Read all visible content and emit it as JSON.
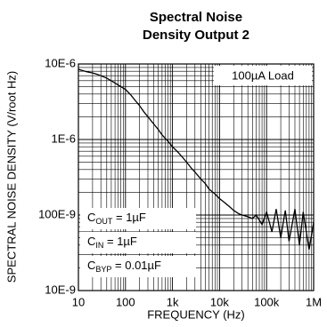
{
  "chart_data": {
    "type": "line",
    "title": [
      "Spectral Noise",
      "Density Output 2"
    ],
    "xlabel": "FREQUENCY (Hz)",
    "ylabel": "SPECTRAL NOISE DENSITY (V/root Hz)",
    "log_x": true,
    "log_y": true,
    "grid": true,
    "minor_grid": true,
    "color": "#000000",
    "xlim": [
      10,
      1000000
    ],
    "ylim": [
      1e-08,
      1e-05
    ],
    "xticks": [
      10,
      100,
      {
        "value": 1000,
        "label": "1k"
      },
      {
        "value": 10000,
        "label": "10k"
      },
      {
        "value": 100000,
        "label": "100k"
      },
      {
        "value": 1000000,
        "label": "1M"
      }
    ],
    "yticks": [
      {
        "value": 1e-08,
        "label": "10E-9"
      },
      {
        "value": 1e-07,
        "label": "100E-9"
      },
      {
        "value": 1e-06,
        "label": "1E-6"
      },
      {
        "value": 1e-05,
        "label": "10E-6"
      }
    ],
    "x": [
      10,
      12,
      15,
      20,
      25,
      30,
      40,
      50,
      60,
      80,
      100,
      130,
      160,
      200,
      250,
      300,
      400,
      500,
      600,
      800,
      1000,
      1300,
      1600,
      2000,
      2500,
      3000,
      4000,
      5000,
      6000,
      8000,
      10000,
      13000,
      16000,
      20000,
      25000,
      30000,
      40000,
      50000,
      60000,
      80000,
      100000,
      130000,
      160000,
      200000,
      250000,
      300000,
      400000,
      500000,
      600000,
      800000,
      1000000
    ],
    "values": [
      8.5e-06,
      8.2e-06,
      7.9e-06,
      7.6e-06,
      7.3e-06,
      7e-06,
      6.5e-06,
      6e-06,
      5.6e-06,
      5e-06,
      4.6e-06,
      3.9e-06,
      3.3e-06,
      2.8e-06,
      2.3e-06,
      2e-06,
      1.6e-06,
      1.35e-06,
      1.15e-06,
      9.5e-07,
      8e-07,
      6.8e-07,
      5.9e-07,
      5e-07,
      4.2e-07,
      3.7e-07,
      3e-07,
      2.6e-07,
      2.2e-07,
      1.9e-07,
      1.65e-07,
      1.45e-07,
      1.3e-07,
      1.15e-07,
      1.05e-07,
      1e-07,
      9.5e-08,
      9e-08,
      1e-07,
      7.5e-08,
      1.1e-07,
      6e-08,
      1.2e-07,
      5e-08,
      1.15e-07,
      4.5e-08,
      1.2e-07,
      4e-08,
      1.1e-07,
      3.5e-08,
      8e-08
    ],
    "annotations": [
      {
        "text": "100µA Load"
      },
      {
        "main": "C",
        "sub": "OUT",
        "rest": " = 1µF"
      },
      {
        "main": "C",
        "sub": "IN",
        "rest": " = 1µF"
      },
      {
        "main": "C",
        "sub": "BYP",
        "rest": " = 0.01µF"
      }
    ]
  }
}
